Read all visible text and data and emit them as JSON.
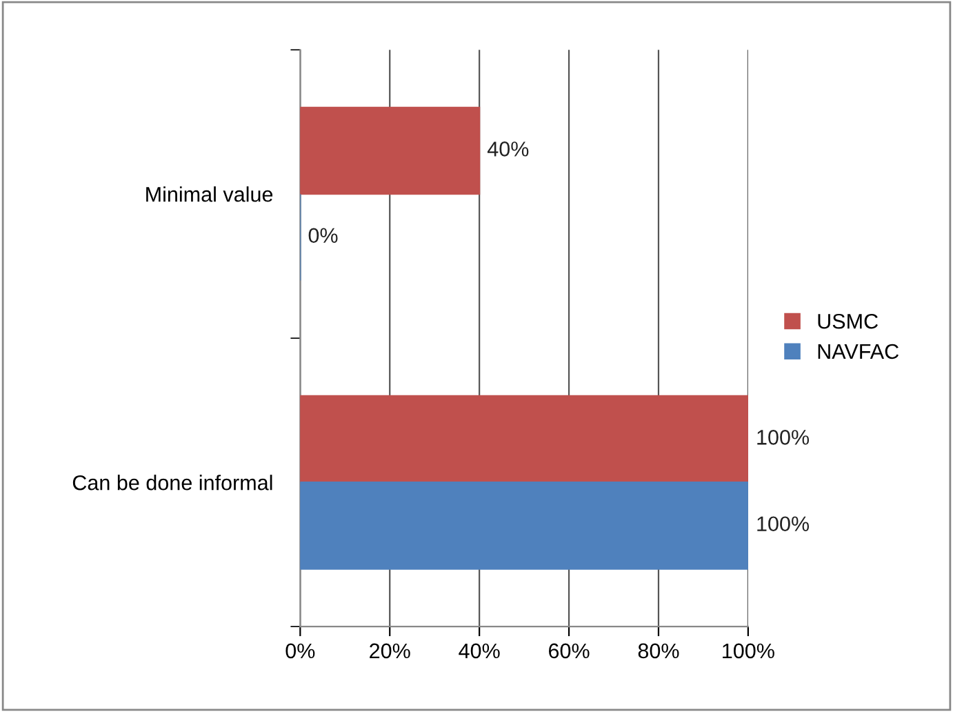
{
  "chart_data": {
    "type": "bar",
    "orientation": "horizontal",
    "categories": [
      "Minimal value",
      "Can be done informal"
    ],
    "series": [
      {
        "name": "USMC",
        "color": "#c0504d",
        "values": [
          40,
          100
        ],
        "value_labels": [
          "40%",
          "100%"
        ]
      },
      {
        "name": "NAVFAC",
        "color": "#4f81bd",
        "values": [
          0,
          100
        ],
        "value_labels": [
          "0%",
          "100%"
        ]
      }
    ],
    "xlim": [
      0,
      100
    ],
    "xticks": [
      {
        "value": 0,
        "label": "0%"
      },
      {
        "value": 20,
        "label": "20%"
      },
      {
        "value": 40,
        "label": "40%"
      },
      {
        "value": 60,
        "label": "60%"
      },
      {
        "value": 80,
        "label": "80%"
      },
      {
        "value": 100,
        "label": "100%"
      }
    ],
    "grid": "x",
    "legend": "right"
  }
}
